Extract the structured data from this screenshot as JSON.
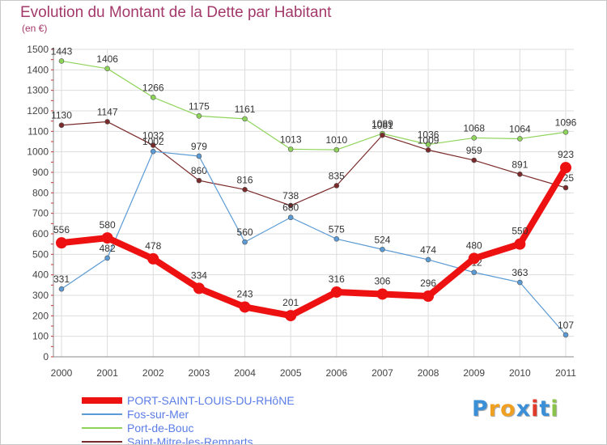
{
  "header": {
    "title": "Evolution du Montant de la Dette par Habitant",
    "subtitle": "(en €)"
  },
  "logo": {
    "text": "Proxiti",
    "letters": [
      "P",
      "r",
      "o",
      "x",
      "i",
      "t",
      "i"
    ],
    "colors": [
      "#3a8fd6",
      "#f0a020",
      "#f0a020",
      "#3a8fd6",
      "#e03a2a",
      "#3a8fd6",
      "#8bc34a"
    ]
  },
  "chart_data": {
    "type": "line",
    "title": "Evolution du Montant de la Dette par Habitant",
    "subtitle": "(en €)",
    "xlabel": "",
    "ylabel": "",
    "ylim": [
      0,
      1500
    ],
    "yticks": [
      "0",
      "100",
      "200",
      "300",
      "400",
      "500",
      "600",
      "700",
      "800",
      "900",
      "1000",
      "1100",
      "1200",
      "1300",
      "1400",
      "1500"
    ],
    "categories": [
      "2000",
      "2001",
      "2002",
      "2003",
      "2004",
      "2005",
      "2006",
      "2007",
      "2008",
      "2009",
      "2010",
      "2011"
    ],
    "grid": true,
    "legend_position": "bottom-left",
    "series": [
      {
        "name": "Port-de-Bouc",
        "color": "#8fd45a",
        "values": [
          1443,
          1406,
          1266,
          1175,
          1161,
          1013,
          1010,
          1089,
          1036,
          1068,
          1064,
          1096
        ],
        "labels": [
          "1443",
          "1406",
          "1266",
          "1175",
          "1161",
          "1013",
          "1010",
          "1089",
          "1036",
          "1068",
          "1064",
          "1096"
        ]
      },
      {
        "name": "Saint-Mitre-les-Remparts",
        "color": "#7a2a2a",
        "values": [
          1130,
          1147,
          1032,
          860,
          816,
          738,
          835,
          1081,
          1009,
          959,
          891,
          825
        ],
        "labels": [
          "1130",
          "1147",
          "1032",
          "860",
          "816",
          "738",
          "835",
          "1081",
          "1009",
          "959",
          "891",
          "825"
        ]
      },
      {
        "name": "Fos-sur-Mer",
        "color": "#5b9bd5",
        "values": [
          331,
          482,
          1002,
          979,
          560,
          680,
          575,
          524,
          474,
          412,
          363,
          107
        ],
        "labels": [
          "331",
          "482",
          "1002",
          "979",
          "560",
          "680",
          "575",
          "524",
          "474",
          "412",
          "363",
          "107"
        ]
      },
      {
        "name": "PORT-SAINT-LOUIS-DU-RHôNE",
        "color": "#ee1111",
        "values": [
          556,
          580,
          478,
          334,
          243,
          201,
          316,
          306,
          296,
          480,
          550,
          923
        ],
        "labels": [
          "556",
          "580",
          "478",
          "334",
          "243",
          "201",
          "316",
          "306",
          "296",
          "480",
          "550",
          "923"
        ]
      }
    ],
    "legend_order": [
      "PORT-SAINT-LOUIS-DU-RHôNE",
      "Fos-sur-Mer",
      "Port-de-Bouc",
      "Saint-Mitre-les-Remparts"
    ]
  }
}
